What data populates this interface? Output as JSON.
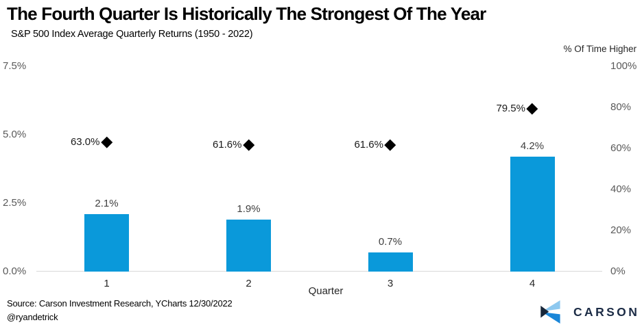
{
  "header": {
    "title": "The Fourth Quarter Is Historically The Strongest Of The Year",
    "subtitle": "S&P 500 Index Average Quarterly Returns (1950 - 2022)"
  },
  "chart_data": {
    "type": "bar",
    "title": "The Fourth Quarter Is Historically The Strongest Of The Year",
    "subtitle": "S&P 500 Index Average Quarterly Returns (1950 - 2022)",
    "xlabel": "Quarter",
    "categories": [
      "1",
      "2",
      "3",
      "4"
    ],
    "series": [
      {
        "name": "Average quarterly return",
        "type": "bar",
        "axis": "left",
        "values": [
          2.1,
          1.9,
          0.7,
          4.2
        ],
        "labels": [
          "2.1%",
          "1.9%",
          "0.7%",
          "4.2%"
        ]
      },
      {
        "name": "% Of Time Higher",
        "type": "scatter-diamond",
        "axis": "right",
        "values": [
          63.0,
          61.6,
          61.6,
          79.5
        ],
        "labels": [
          "63.0%",
          "61.6%",
          "61.6%",
          "79.5%"
        ]
      }
    ],
    "left_axis": {
      "range": [
        0,
        7.5
      ],
      "ticks": [
        {
          "v": 0,
          "label": "0.0%"
        },
        {
          "v": 2.5,
          "label": "2.5%"
        },
        {
          "v": 5,
          "label": "5.0%"
        },
        {
          "v": 7.5,
          "label": "7.5%"
        }
      ]
    },
    "right_axis": {
      "title": "% Of Time Higher",
      "range": [
        0,
        100
      ],
      "ticks": [
        {
          "v": 0,
          "label": "0%"
        },
        {
          "v": 20,
          "label": "20%"
        },
        {
          "v": 40,
          "label": "40%"
        },
        {
          "v": 60,
          "label": "60%"
        },
        {
          "v": 80,
          "label": "80%"
        },
        {
          "v": 100,
          "label": "100%"
        }
      ]
    },
    "grid": "baseline-only",
    "legend": "none"
  },
  "footer": {
    "source": "Source: Carson Investment Research, YCharts 12/30/2022",
    "handle": "@ryandetrick",
    "logo_text": "CARSON"
  },
  "colors": {
    "bar": "#0a99da",
    "marker": "#000000",
    "baseline": "#d9d9d9",
    "bar_label": "#404040",
    "logo_navy": "#1b2b45",
    "logo_light_blue": "#8dc8ef",
    "logo_mid_blue": "#1a86d8",
    "logo_dark_wedge": "#182639"
  }
}
